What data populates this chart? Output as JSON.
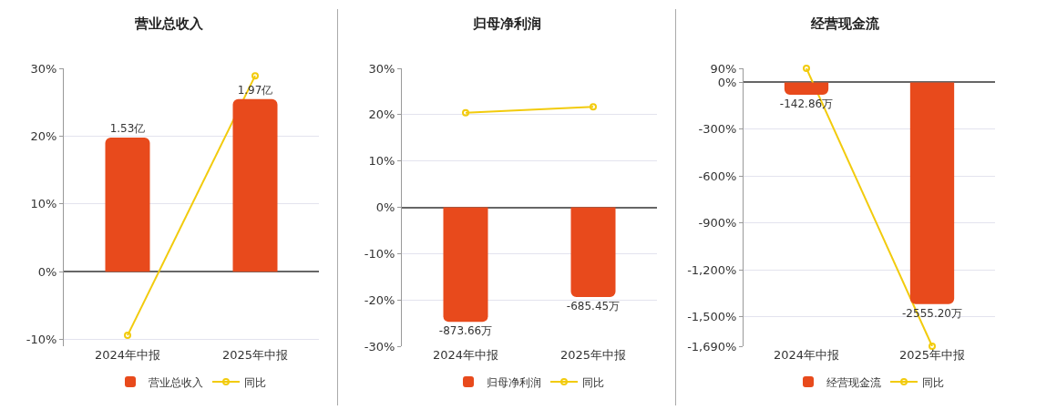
{
  "chart_data": [
    {
      "type": "bar",
      "title": "营业总收入",
      "categories": [
        "2024年中报",
        "2025年中报"
      ],
      "series": [
        {
          "name": "营业总收入",
          "axis": "y2",
          "color": "#e84a1c",
          "values": [
            1.53,
            1.97
          ],
          "value_labels": [
            "1.53亿",
            "1.97亿"
          ]
        },
        {
          "name": "同比",
          "type": "line",
          "color": "#f2cb0d",
          "values": [
            -9.4,
            28.9
          ]
        }
      ],
      "ylim": [
        -11,
        30
      ],
      "yticks": [
        {
          "value": -10,
          "label": "-10%"
        },
        {
          "value": 0,
          "label": "0%"
        },
        {
          "value": 10,
          "label": "10%"
        },
        {
          "value": 20,
          "label": "20%"
        },
        {
          "value": 30,
          "label": "30%"
        }
      ],
      "y2lim": [
        -0.85,
        2.32
      ],
      "grid": "y",
      "legend": "bottom",
      "marker": "circle"
    },
    {
      "type": "bar",
      "title": "归母净利润",
      "categories": [
        "2024年中报",
        "2025年中报"
      ],
      "series": [
        {
          "name": "归母净利润",
          "axis": "y2",
          "color": "#e84a1c",
          "values": [
            -873.66,
            -685.45
          ],
          "value_labels": [
            "-873.66万",
            "-685.45万"
          ]
        },
        {
          "name": "同比",
          "type": "line",
          "color": "#f2cb0d",
          "values": [
            20.4,
            21.7
          ]
        }
      ],
      "ylim": [
        -30,
        30
      ],
      "yticks": [
        {
          "value": -30,
          "label": "-30%"
        },
        {
          "value": -20,
          "label": "-20%"
        },
        {
          "value": -10,
          "label": "-10%"
        },
        {
          "value": 0,
          "label": "0%"
        },
        {
          "value": 10,
          "label": "10%"
        },
        {
          "value": 20,
          "label": "20%"
        },
        {
          "value": 30,
          "label": "30%"
        }
      ],
      "y2lim": [
        -1060,
        1060
      ],
      "grid": "y",
      "legend": "bottom",
      "marker": "circle"
    },
    {
      "type": "bar",
      "title": "经营现金流",
      "categories": [
        "2024年中报",
        "2025年中报"
      ],
      "series": [
        {
          "name": "经营现金流",
          "axis": "y2",
          "color": "#e84a1c",
          "values": [
            -142.86,
            -2555.2
          ],
          "value_labels": [
            "-142.86万",
            "-2555.20万"
          ]
        },
        {
          "name": "同比",
          "type": "line",
          "color": "#f2cb0d",
          "values": [
            90,
            -1690
          ]
        }
      ],
      "ylim": [
        -1690,
        90
      ],
      "yticks": [
        {
          "value": -1690,
          "label": "-1,690%"
        },
        {
          "value": -1500,
          "label": "-1,500%"
        },
        {
          "value": -1200,
          "label": "-1,200%"
        },
        {
          "value": -900,
          "label": "-900%"
        },
        {
          "value": -600,
          "label": "-600%"
        },
        {
          "value": -300,
          "label": "-300%"
        },
        {
          "value": 0,
          "label": "0%"
        },
        {
          "value": 90,
          "label": "90%"
        }
      ],
      "y2lim": [
        -3042,
        162
      ],
      "grid": "y",
      "legend": "bottom",
      "marker": "circle"
    }
  ]
}
